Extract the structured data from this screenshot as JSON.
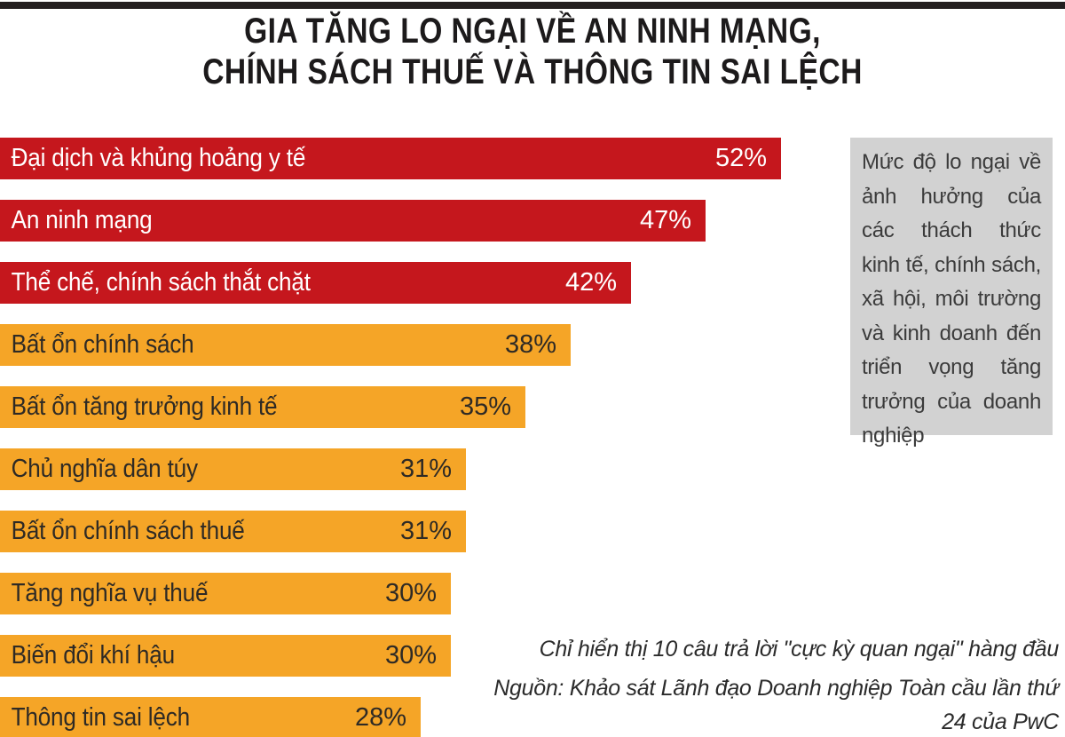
{
  "title": {
    "line1": "GIA TĂNG LO NGẠI VỀ AN NINH MẠNG,",
    "line2": "CHÍNH SÁCH THUẾ VÀ THÔNG TIN SAI LỆCH"
  },
  "chart_data": {
    "type": "bar",
    "orientation": "horizontal",
    "title": "GIA TĂNG LO NGẠI VỀ AN NINH MẠNG, CHÍNH SÁCH THUẾ VÀ THÔNG TIN SAI LỆCH",
    "unit": "%",
    "value_range": [
      0,
      52
    ],
    "grid": false,
    "legend": false,
    "categories": [
      "Đại dịch và khủng hoảng y tế",
      "An ninh mạng",
      "Thể chế, chính sách thắt chặt",
      "Bất ổn chính sách",
      "Bất ổn tăng trưởng kinh tế",
      "Chủ nghĩa dân túy",
      "Bất ổn chính sách thuế",
      "Tăng nghĩa vụ thuế",
      "Biến đổi khí hậu",
      "Thông tin sai lệch"
    ],
    "values": [
      52,
      47,
      42,
      38,
      35,
      31,
      31,
      30,
      30,
      28
    ],
    "value_labels": [
      "52%",
      "47%",
      "42%",
      "38%",
      "35%",
      "31%",
      "31%",
      "30%",
      "30%",
      "28%"
    ],
    "bar_color_groups": [
      "red",
      "red",
      "red",
      "orange",
      "orange",
      "orange",
      "orange",
      "orange",
      "orange",
      "orange"
    ],
    "colors": {
      "red": "#c5171d",
      "orange": "#f5a527"
    }
  },
  "side_note": "Mức độ lo ngại về ảnh hưởng của các thách thức kinh tế, chính sách, xã hội, môi trường và kinh doanh đến triển vọng tăng trưởng của doanh nghiệp",
  "footnotes": {
    "note": "Chỉ hiển thị 10 câu trả lời \"cực kỳ quan ngại\" hàng đầu",
    "source": "Nguồn: Khảo sát Lãnh đạo Doanh nghiệp Toàn cầu lần thứ 24 của PwC"
  },
  "colors": {
    "top_rule": "#231f20",
    "title_text": "#1c1a1b",
    "red_bar": "#c5171d",
    "orange_bar": "#f5a527",
    "bar_text_on_red": "#ffffff",
    "bar_text_on_orange": "#2e2a25",
    "side_note_bg": "#d2d2d2",
    "side_note_text": "#3b3b3b",
    "footnote_text": "#2b2b2b"
  }
}
